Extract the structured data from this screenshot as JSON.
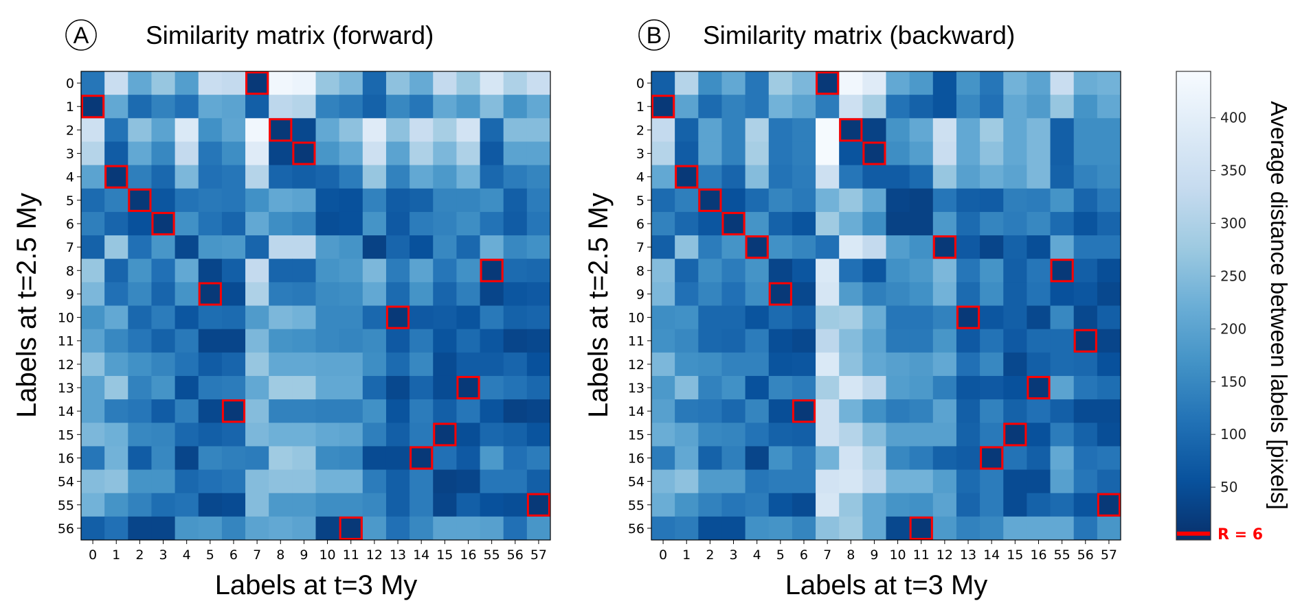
{
  "colors": {
    "highlight": "#ff0000",
    "colormap": "Blues_r",
    "axis": "#000000"
  },
  "chart_data": [
    {
      "type": "heatmap",
      "panel": "A",
      "title": "Similarity matrix (forward)",
      "xlabel": "Labels at t=3 My",
      "ylabel": "Labels at t=2.5 My",
      "x_categories": [
        "0",
        "1",
        "2",
        "3",
        "4",
        "5",
        "6",
        "7",
        "8",
        "9",
        "10",
        "11",
        "12",
        "13",
        "14",
        "15",
        "16",
        "55",
        "56",
        "57"
      ],
      "y_categories": [
        "0",
        "1",
        "2",
        "3",
        "4",
        "5",
        "6",
        "7",
        "8",
        "9",
        "10",
        "11",
        "12",
        "13",
        "14",
        "15",
        "16",
        "54",
        "55",
        "56"
      ],
      "values": [
        [
          120,
          340,
          210,
          270,
          190,
          340,
          330,
          15,
          430,
          420,
          270,
          240,
          95,
          260,
          215,
          330,
          275,
          370,
          300,
          340
        ],
        [
          15,
          210,
          100,
          140,
          110,
          210,
          200,
          80,
          320,
          310,
          140,
          125,
          85,
          150,
          120,
          210,
          180,
          250,
          170,
          210
        ],
        [
          350,
          115,
          260,
          200,
          380,
          165,
          205,
          430,
          15,
          40,
          210,
          260,
          390,
          260,
          340,
          290,
          360,
          95,
          250,
          250
        ],
        [
          310,
          75,
          210,
          150,
          330,
          120,
          160,
          390,
          35,
          15,
          175,
          210,
          350,
          200,
          300,
          240,
          300,
          70,
          200,
          200
        ],
        [
          200,
          15,
          135,
          95,
          240,
          110,
          120,
          310,
          90,
          80,
          90,
          130,
          270,
          140,
          210,
          180,
          230,
          95,
          130,
          145
        ],
        [
          100,
          135,
          15,
          65,
          115,
          125,
          120,
          165,
          210,
          200,
          60,
          55,
          140,
          75,
          85,
          145,
          145,
          160,
          80,
          130
        ],
        [
          135,
          90,
          55,
          15,
          165,
          115,
          90,
          210,
          160,
          145,
          50,
          55,
          170,
          70,
          130,
          140,
          160,
          115,
          75,
          120
        ],
        [
          85,
          270,
          110,
          175,
          40,
          175,
          180,
          90,
          320,
          320,
          185,
          170,
          30,
          90,
          55,
          150,
          95,
          220,
          150,
          165
        ],
        [
          270,
          90,
          170,
          110,
          210,
          35,
          80,
          330,
          90,
          90,
          170,
          180,
          240,
          130,
          200,
          120,
          165,
          15,
          100,
          95
        ],
        [
          240,
          110,
          150,
          90,
          170,
          15,
          45,
          300,
          130,
          125,
          155,
          160,
          210,
          100,
          170,
          90,
          135,
          35,
          65,
          70
        ],
        [
          170,
          210,
          95,
          130,
          65,
          105,
          100,
          185,
          240,
          230,
          150,
          150,
          95,
          15,
          70,
          75,
          60,
          125,
          85,
          90
        ],
        [
          200,
          150,
          120,
          85,
          125,
          35,
          35,
          240,
          170,
          165,
          150,
          145,
          155,
          70,
          125,
          60,
          100,
          65,
          35,
          40
        ],
        [
          260,
          190,
          165,
          145,
          115,
          75,
          90,
          270,
          210,
          210,
          205,
          205,
          160,
          100,
          150,
          45,
          75,
          75,
          90,
          55
        ],
        [
          200,
          270,
          140,
          170,
          50,
          125,
          130,
          210,
          280,
          280,
          210,
          210,
          95,
          40,
          90,
          45,
          15,
          130,
          115,
          95
        ],
        [
          200,
          130,
          120,
          75,
          135,
          40,
          15,
          250,
          140,
          140,
          135,
          135,
          165,
          60,
          130,
          80,
          120,
          60,
          30,
          35
        ],
        [
          240,
          225,
          150,
          145,
          95,
          80,
          90,
          240,
          225,
          225,
          210,
          205,
          135,
          80,
          125,
          15,
          50,
          95,
          85,
          60
        ],
        [
          120,
          230,
          75,
          150,
          35,
          145,
          135,
          130,
          280,
          270,
          155,
          150,
          45,
          45,
          15,
          110,
          70,
          180,
          110,
          130
        ],
        [
          250,
          260,
          170,
          170,
          95,
          110,
          120,
          250,
          260,
          260,
          230,
          230,
          130,
          80,
          130,
          30,
          35,
          120,
          120,
          80
        ],
        [
          230,
          170,
          140,
          105,
          115,
          40,
          45,
          250,
          180,
          180,
          160,
          160,
          150,
          80,
          130,
          35,
          80,
          55,
          50,
          15
        ],
        [
          80,
          110,
          35,
          35,
          175,
          180,
          145,
          200,
          210,
          200,
          30,
          15,
          180,
          110,
          150,
          200,
          200,
          195,
          110,
          175
        ]
      ],
      "highlighted_cells": [
        [
          "0",
          "7"
        ],
        [
          "1",
          "0"
        ],
        [
          "2",
          "8"
        ],
        [
          "3",
          "9"
        ],
        [
          "4",
          "1"
        ],
        [
          "5",
          "2"
        ],
        [
          "6",
          "3"
        ],
        [
          "8",
          "55"
        ],
        [
          "9",
          "5"
        ],
        [
          "10",
          "13"
        ],
        [
          "13",
          "16"
        ],
        [
          "14",
          "6"
        ],
        [
          "15",
          "15"
        ],
        [
          "16",
          "14"
        ],
        [
          "55",
          "57"
        ],
        [
          "56",
          "11"
        ]
      ]
    },
    {
      "type": "heatmap",
      "panel": "B",
      "title": "Similarity matrix (backward)",
      "xlabel": "Labels at t=3 My",
      "ylabel": "Labels at t=2.5 My",
      "x_categories": [
        "0",
        "1",
        "2",
        "3",
        "4",
        "5",
        "6",
        "7",
        "8",
        "9",
        "10",
        "11",
        "12",
        "13",
        "14",
        "15",
        "16",
        "55",
        "56",
        "57"
      ],
      "y_categories": [
        "0",
        "1",
        "2",
        "3",
        "4",
        "5",
        "6",
        "7",
        "8",
        "9",
        "10",
        "11",
        "12",
        "13",
        "14",
        "15",
        "16",
        "54",
        "55",
        "56"
      ],
      "values": [
        [
          80,
          310,
          160,
          210,
          120,
          280,
          240,
          15,
          430,
          390,
          210,
          180,
          60,
          170,
          120,
          230,
          200,
          340,
          220,
          230
        ],
        [
          15,
          200,
          100,
          140,
          120,
          230,
          200,
          130,
          350,
          290,
          115,
          85,
          60,
          150,
          110,
          210,
          185,
          270,
          170,
          210
        ],
        [
          330,
          85,
          200,
          140,
          300,
          120,
          135,
          440,
          15,
          30,
          170,
          210,
          350,
          210,
          280,
          210,
          240,
          80,
          160,
          160
        ],
        [
          310,
          75,
          200,
          140,
          290,
          120,
          135,
          440,
          60,
          15,
          160,
          190,
          340,
          210,
          260,
          210,
          240,
          80,
          160,
          160
        ],
        [
          210,
          15,
          130,
          90,
          250,
          115,
          130,
          350,
          120,
          75,
          75,
          100,
          270,
          195,
          220,
          200,
          240,
          85,
          140,
          155
        ],
        [
          100,
          135,
          15,
          55,
          100,
          145,
          125,
          230,
          270,
          210,
          35,
          30,
          120,
          80,
          75,
          135,
          130,
          170,
          90,
          125
        ],
        [
          140,
          95,
          65,
          15,
          170,
          85,
          60,
          280,
          220,
          160,
          30,
          30,
          180,
          100,
          145,
          130,
          150,
          100,
          60,
          90
        ],
        [
          80,
          260,
          130,
          170,
          15,
          165,
          145,
          110,
          380,
          330,
          190,
          165,
          15,
          70,
          35,
          85,
          50,
          210,
          120,
          120
        ],
        [
          250,
          90,
          160,
          130,
          170,
          35,
          65,
          380,
          110,
          65,
          165,
          180,
          240,
          120,
          170,
          80,
          120,
          15,
          80,
          50
        ],
        [
          240,
          110,
          145,
          110,
          160,
          15,
          40,
          370,
          185,
          135,
          150,
          165,
          230,
          100,
          160,
          80,
          115,
          55,
          65,
          40
        ],
        [
          160,
          165,
          95,
          95,
          60,
          100,
          80,
          280,
          290,
          220,
          120,
          120,
          140,
          15,
          65,
          80,
          40,
          150,
          40,
          80
        ],
        [
          165,
          150,
          95,
          90,
          130,
          50,
          40,
          320,
          250,
          200,
          125,
          125,
          175,
          70,
          115,
          70,
          100,
          100,
          15,
          35
        ],
        [
          240,
          165,
          160,
          140,
          140,
          60,
          65,
          380,
          260,
          210,
          195,
          185,
          210,
          110,
          150,
          40,
          80,
          100,
          95,
          55
        ],
        [
          180,
          250,
          140,
          165,
          55,
          145,
          130,
          290,
          370,
          320,
          190,
          180,
          135,
          65,
          70,
          55,
          15,
          200,
          120,
          105
        ],
        [
          195,
          125,
          120,
          95,
          145,
          50,
          15,
          350,
          230,
          165,
          130,
          140,
          200,
          80,
          140,
          85,
          110,
          80,
          45,
          45
        ],
        [
          220,
          200,
          150,
          145,
          115,
          85,
          80,
          350,
          310,
          250,
          195,
          195,
          195,
          85,
          125,
          15,
          55,
          130,
          85,
          50
        ],
        [
          130,
          210,
          85,
          135,
          35,
          165,
          130,
          230,
          360,
          300,
          150,
          130,
          85,
          75,
          15,
          115,
          80,
          210,
          110,
          120
        ],
        [
          240,
          260,
          185,
          185,
          120,
          130,
          130,
          360,
          370,
          320,
          230,
          230,
          190,
          100,
          130,
          45,
          45,
          195,
          120,
          90
        ],
        [
          220,
          170,
          140,
          120,
          130,
          60,
          45,
          370,
          270,
          210,
          170,
          165,
          200,
          90,
          130,
          45,
          85,
          100,
          60,
          15
        ],
        [
          120,
          130,
          50,
          50,
          165,
          170,
          145,
          260,
          280,
          210,
          40,
          15,
          180,
          140,
          150,
          210,
          210,
          210,
          120,
          175
        ]
      ],
      "highlighted_cells": [
        [
          "0",
          "7"
        ],
        [
          "1",
          "0"
        ],
        [
          "2",
          "8"
        ],
        [
          "3",
          "9"
        ],
        [
          "4",
          "1"
        ],
        [
          "5",
          "2"
        ],
        [
          "6",
          "3"
        ],
        [
          "7",
          "4"
        ],
        [
          "7",
          "12"
        ],
        [
          "8",
          "55"
        ],
        [
          "9",
          "5"
        ],
        [
          "10",
          "13"
        ],
        [
          "11",
          "56"
        ],
        [
          "13",
          "16"
        ],
        [
          "14",
          "6"
        ],
        [
          "15",
          "15"
        ],
        [
          "16",
          "14"
        ],
        [
          "55",
          "57"
        ],
        [
          "56",
          "11"
        ]
      ]
    }
  ],
  "colorbar": {
    "label": "Average distance between labels [pixels]",
    "range": [
      0,
      444
    ],
    "ticks": [
      50,
      100,
      150,
      200,
      250,
      300,
      350,
      400
    ],
    "threshold_value": 6,
    "threshold_label": "R = 6"
  }
}
